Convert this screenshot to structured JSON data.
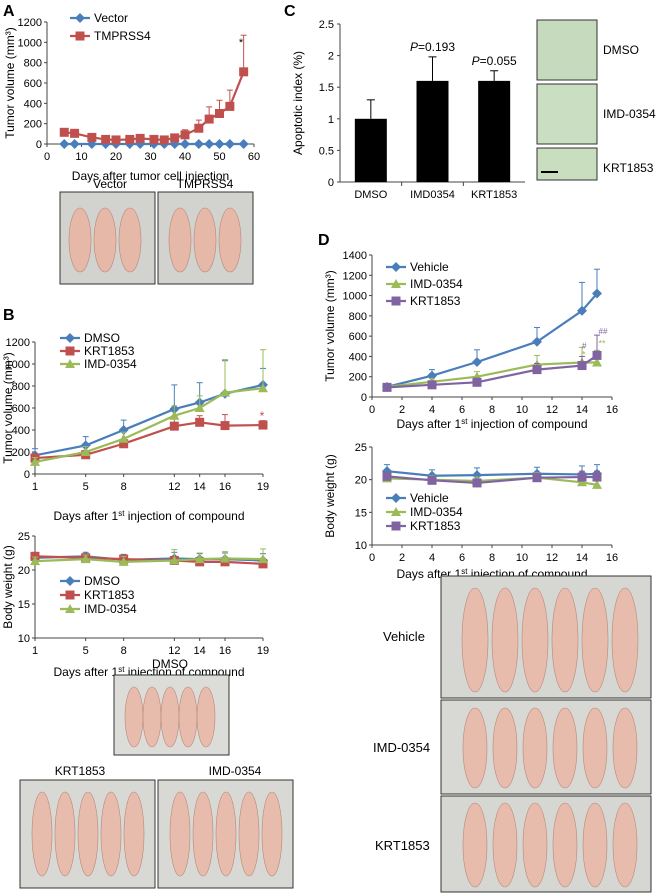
{
  "panels": {
    "A": {
      "letter": "A",
      "photo_labels": [
        "Vector",
        "TMPRSS4"
      ]
    },
    "B": {
      "letter": "B",
      "photo_labels": [
        "DMSO",
        "KRT1853",
        "IMD-0354"
      ]
    },
    "C": {
      "letter": "C",
      "photo_labels": [
        "DMSO",
        "IMD-0354",
        "KRT1853"
      ]
    },
    "D": {
      "letter": "D",
      "photo_labels": [
        "Vehicle",
        "IMD-0354",
        "KRT1853"
      ]
    }
  },
  "colors": {
    "blue": "#4a7ebb",
    "red": "#c0504d",
    "green": "#9bbb59",
    "purple": "#8064a2",
    "black": "#000000",
    "photo_bg": "#d8d8d4",
    "stain_bg": "#c8dcc0"
  },
  "chart_data": [
    {
      "id": "A-tumor",
      "type": "line",
      "ylabel": "Tumor volume (mm³)",
      "xlabel": "Days after tumor cell injection",
      "xlim": [
        0,
        60
      ],
      "ylim": [
        0,
        1200
      ],
      "xticks": [
        0,
        10,
        20,
        30,
        40,
        50,
        60
      ],
      "yticks": [
        0,
        200,
        400,
        600,
        800,
        1000,
        1200
      ],
      "series": [
        {
          "name": "Vector",
          "color": "#4a7ebb",
          "marker": "diamond",
          "x": [
            5,
            8,
            13,
            17,
            20,
            24,
            27,
            31,
            34,
            37,
            40,
            44,
            47,
            50,
            53,
            57
          ],
          "y": [
            0,
            0,
            0,
            0,
            0,
            0,
            0,
            0,
            0,
            0,
            0,
            0,
            0,
            0,
            0,
            0
          ],
          "err": [
            0,
            0,
            0,
            0,
            0,
            0,
            0,
            0,
            0,
            0,
            0,
            0,
            0,
            0,
            0,
            0
          ]
        },
        {
          "name": "TMPRSS4",
          "color": "#c0504d",
          "marker": "square",
          "x": [
            5,
            8,
            13,
            17,
            20,
            24,
            27,
            31,
            34,
            37,
            40,
            44,
            47,
            50,
            53,
            57
          ],
          "y": [
            115,
            105,
            65,
            45,
            40,
            45,
            55,
            45,
            40,
            60,
            90,
            155,
            245,
            300,
            370,
            710
          ],
          "err": [
            20,
            20,
            20,
            15,
            15,
            20,
            25,
            20,
            20,
            30,
            50,
            80,
            120,
            130,
            160,
            360
          ]
        }
      ],
      "annotations": [
        "*"
      ]
    },
    {
      "id": "B-tumor",
      "type": "line",
      "ylabel": "Tumor volume (mm³)",
      "xlabel": "Days after 1st injection of compound",
      "xlim": [
        1,
        19
      ],
      "ylim": [
        0,
        1200
      ],
      "xticks": [
        1,
        5,
        8,
        12,
        14,
        16,
        19
      ],
      "yticks": [
        0,
        200,
        400,
        600,
        800,
        1000,
        1200
      ],
      "series": [
        {
          "name": "DMSO",
          "color": "#4a7ebb",
          "marker": "diamond",
          "x": [
            1,
            5,
            8,
            12,
            14,
            16,
            19
          ],
          "y": [
            170,
            260,
            400,
            590,
            650,
            730,
            810
          ],
          "err": [
            60,
            80,
            90,
            220,
            180,
            300,
            150
          ]
        },
        {
          "name": "KRT1853",
          "color": "#c0504d",
          "marker": "square",
          "x": [
            1,
            5,
            8,
            12,
            14,
            16,
            19
          ],
          "y": [
            145,
            175,
            275,
            435,
            470,
            440,
            445
          ],
          "err": [
            40,
            40,
            40,
            90,
            60,
            100,
            40
          ]
        },
        {
          "name": "IMD-0354",
          "color": "#9bbb59",
          "marker": "triangle",
          "x": [
            1,
            5,
            8,
            12,
            14,
            16,
            19
          ],
          "y": [
            110,
            200,
            320,
            530,
            600,
            740,
            780
          ],
          "err": [
            40,
            50,
            60,
            90,
            110,
            300,
            350
          ]
        }
      ],
      "annotations": [
        "*"
      ]
    },
    {
      "id": "B-weight",
      "type": "line",
      "ylabel": "Body weight (g)",
      "xlabel": "Days after 1st injection of compound",
      "xlim": [
        1,
        19
      ],
      "ylim": [
        10,
        25
      ],
      "xticks": [
        1,
        5,
        8,
        12,
        14,
        16,
        19
      ],
      "yticks": [
        10,
        15,
        20,
        25
      ],
      "series": [
        {
          "name": "DMSO",
          "color": "#4a7ebb",
          "marker": "diamond",
          "x": [
            1,
            5,
            8,
            12,
            14,
            16,
            19
          ],
          "y": [
            21.8,
            22.0,
            21.5,
            21.7,
            21.6,
            21.6,
            21.4
          ],
          "err": [
            0.6,
            0.6,
            0.8,
            0.9,
            0.8,
            0.9,
            1.0
          ]
        },
        {
          "name": "KRT1853",
          "color": "#c0504d",
          "marker": "square",
          "x": [
            1,
            5,
            8,
            12,
            14,
            16,
            19
          ],
          "y": [
            22.0,
            21.8,
            21.6,
            21.4,
            21.2,
            21.2,
            20.9
          ],
          "err": [
            0.6,
            0.5,
            0.6,
            0.6,
            0.6,
            0.6,
            0.6
          ]
        },
        {
          "name": "IMD-0354",
          "color": "#9bbb59",
          "marker": "triangle",
          "x": [
            1,
            5,
            8,
            12,
            14,
            16,
            19
          ],
          "y": [
            21.3,
            21.6,
            21.2,
            21.4,
            21.6,
            21.7,
            21.6
          ],
          "err": [
            0.6,
            0.6,
            0.8,
            1.6,
            0.9,
            1.0,
            1.5
          ]
        }
      ]
    },
    {
      "id": "C-apoptotic",
      "type": "bar",
      "ylabel": "Apoptotic index (%)",
      "categories": [
        "DMSO",
        "IMD0354",
        "KRT1853"
      ],
      "values": [
        1.0,
        1.6,
        1.6
      ],
      "err": [
        0.3,
        0.38,
        0.16
      ],
      "ylim": [
        0,
        2.5
      ],
      "yticks": [
        "0",
        "0.5",
        "1",
        "1.5",
        "2",
        "2.5"
      ],
      "pvalue_labels": [
        "",
        "P=0.193",
        "P=0.055"
      ],
      "color": "#000000"
    },
    {
      "id": "D-tumor",
      "type": "line",
      "ylabel": "Tumor volume (mm³)",
      "xlabel": "Days after 1st injection of compound",
      "xlim": [
        0,
        16
      ],
      "ylim": [
        0,
        1400
      ],
      "xticks": [
        0,
        2,
        4,
        6,
        8,
        10,
        12,
        14,
        16
      ],
      "yticks": [
        0,
        200,
        400,
        600,
        800,
        1000,
        1200,
        1400
      ],
      "series": [
        {
          "name": "Vehicle",
          "color": "#4a7ebb",
          "marker": "diamond",
          "x": [
            1,
            4,
            7,
            11,
            14,
            15
          ],
          "y": [
            100,
            210,
            345,
            545,
            850,
            1020
          ],
          "err": [
            30,
            60,
            120,
            140,
            280,
            240
          ]
        },
        {
          "name": "IMD-0354",
          "color": "#9bbb59",
          "marker": "triangle",
          "x": [
            1,
            4,
            7,
            11,
            14,
            15
          ],
          "y": [
            100,
            150,
            200,
            320,
            340,
            340
          ],
          "err": [
            20,
            30,
            50,
            90,
            150,
            120
          ]
        },
        {
          "name": "KRT1853",
          "color": "#8064a2",
          "marker": "square",
          "x": [
            1,
            4,
            7,
            11,
            14,
            15
          ],
          "y": [
            95,
            120,
            145,
            270,
            310,
            410
          ],
          "err": [
            20,
            25,
            40,
            60,
            90,
            200
          ]
        }
      ],
      "annotations": [
        "#",
        "*",
        "##",
        "**"
      ]
    },
    {
      "id": "D-weight",
      "type": "line",
      "ylabel": "Body weight (g)",
      "xlabel": "Days after 1st injection of compound",
      "xlim": [
        0,
        16
      ],
      "ylim": [
        10,
        25
      ],
      "xticks": [
        0,
        2,
        4,
        6,
        8,
        10,
        12,
        14,
        16
      ],
      "yticks": [
        10,
        15,
        20,
        25
      ],
      "series": [
        {
          "name": "Vehicle",
          "color": "#4a7ebb",
          "marker": "diamond",
          "x": [
            1,
            4,
            7,
            11,
            14,
            15
          ],
          "y": [
            21.3,
            20.6,
            20.7,
            20.9,
            20.8,
            20.9
          ],
          "err": [
            1.0,
            0.9,
            1.1,
            1.0,
            1.3,
            1.4
          ]
        },
        {
          "name": "IMD-0354",
          "color": "#9bbb59",
          "marker": "triangle",
          "x": [
            1,
            4,
            7,
            11,
            14,
            15
          ],
          "y": [
            20.2,
            20.0,
            19.8,
            20.3,
            19.6,
            19.2
          ],
          "err": [
            0.7,
            0.6,
            0.6,
            0.8,
            0.8,
            0.6
          ]
        },
        {
          "name": "KRT1853",
          "color": "#8064a2",
          "marker": "square",
          "x": [
            1,
            4,
            7,
            11,
            14,
            15
          ],
          "y": [
            20.5,
            19.9,
            19.5,
            20.3,
            20.4,
            20.4
          ],
          "err": [
            0.6,
            0.6,
            0.6,
            0.7,
            0.9,
            0.9
          ]
        }
      ]
    }
  ]
}
